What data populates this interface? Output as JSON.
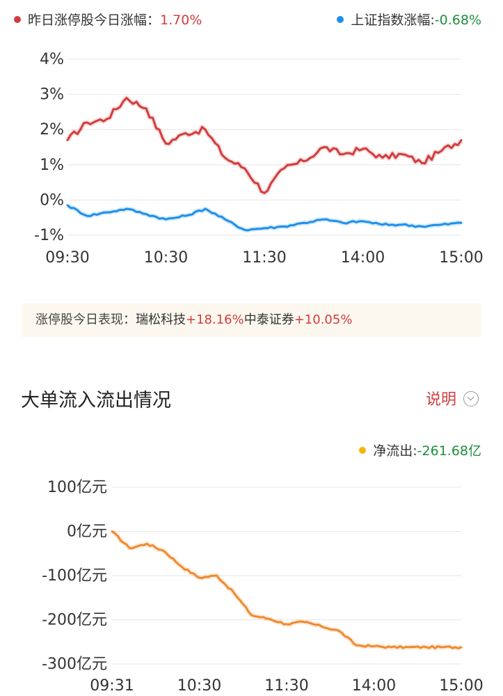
{
  "legend": {
    "yesterday_label": "昨日涨停股今日涨幅：",
    "yesterday_value": "1.70%",
    "index_label": "上证指数涨幅:",
    "index_value": "-0.68%"
  },
  "colors": {
    "red": "#d23c3c",
    "blue": "#1f8fe8",
    "orange": "#ef8a2e",
    "yellow_dot": "#f2b705",
    "green": "#1d8f3a"
  },
  "limit_up": {
    "label": "涨停股今日表现：",
    "stocks": [
      {
        "name": "瑞松科技",
        "change": "+18.16%"
      },
      {
        "name": "中泰证券",
        "change": "+10.05%"
      }
    ]
  },
  "section": {
    "title": "大单流入流出情况",
    "explain": "说明"
  },
  "flow_legend": {
    "label": "净流出:",
    "value": "-261.68亿"
  },
  "chart_data": [
    {
      "type": "line",
      "x_ticks": [
        "09:30",
        "10:30",
        "11:30",
        "14:00",
        "15:00"
      ],
      "y_ticks": [
        "4%",
        "3%",
        "2%",
        "1%",
        "0%",
        "-1%"
      ],
      "ylim": [
        -1,
        4
      ],
      "x": [
        0,
        0.05,
        0.1,
        0.15,
        0.2,
        0.25,
        0.3,
        0.35,
        0.4,
        0.45,
        0.5,
        0.55,
        0.6,
        0.65,
        0.7,
        0.75,
        0.8,
        0.85,
        0.9,
        0.95,
        1.0
      ],
      "series": [
        {
          "name": "昨日涨停股今日涨幅",
          "color": "red",
          "values": [
            1.7,
            2.2,
            2.3,
            2.9,
            2.6,
            1.6,
            1.9,
            2.0,
            1.2,
            0.9,
            0.2,
            0.9,
            1.1,
            1.5,
            1.3,
            1.45,
            1.2,
            1.3,
            1.05,
            1.4,
            1.7
          ]
        },
        {
          "name": "上证指数涨幅",
          "color": "blue",
          "values": [
            -0.15,
            -0.45,
            -0.35,
            -0.25,
            -0.4,
            -0.55,
            -0.45,
            -0.25,
            -0.55,
            -0.85,
            -0.8,
            -0.75,
            -0.65,
            -0.55,
            -0.65,
            -0.6,
            -0.7,
            -0.7,
            -0.75,
            -0.7,
            -0.65
          ]
        }
      ]
    },
    {
      "type": "line",
      "x_ticks": [
        "09:31",
        "10:30",
        "11:30",
        "14:00",
        "15:00"
      ],
      "y_ticks": [
        "100亿元",
        "0亿元",
        "-100亿元",
        "-200亿元",
        "-300亿元"
      ],
      "ylim": [
        -300,
        100
      ],
      "x": [
        0,
        0.05,
        0.1,
        0.15,
        0.2,
        0.25,
        0.3,
        0.35,
        0.4,
        0.45,
        0.5,
        0.55,
        0.6,
        0.65,
        0.7,
        0.75,
        0.8,
        0.85,
        0.9,
        0.95,
        1.0
      ],
      "series": [
        {
          "name": "净流出",
          "color": "orange",
          "values": [
            0,
            -38,
            -28,
            -45,
            -80,
            -105,
            -100,
            -140,
            -190,
            -198,
            -210,
            -205,
            -215,
            -225,
            -258,
            -260,
            -262,
            -262,
            -262,
            -262,
            -262
          ]
        }
      ]
    }
  ]
}
